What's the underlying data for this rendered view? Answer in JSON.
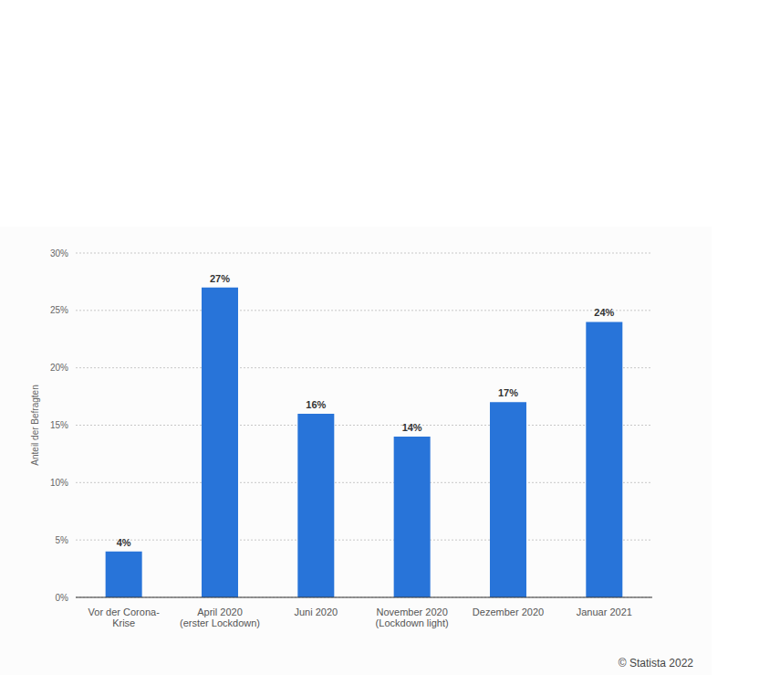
{
  "chart_data": {
    "type": "bar",
    "y_label": "Anteil der Befragten",
    "source": "© Statista 2022",
    "categories": [
      "Vor der Corona-Krise",
      "April 2020 (erster Lockdown)",
      "Juni 2020",
      "November 2020 (Lockdown light)",
      "Dezember 2020",
      "Januar 2021"
    ],
    "values": [
      4,
      27,
      16,
      14,
      17,
      24
    ],
    "value_labels": [
      "4%",
      "27%",
      "16%",
      "14%",
      "17%",
      "24%"
    ],
    "data_labels": true,
    "color": "#2874d9",
    "ylim": [
      0,
      30
    ],
    "yticks": [
      {
        "value": 0,
        "label": "0%"
      },
      {
        "value": 5,
        "label": "5%"
      },
      {
        "value": 10,
        "label": "10%"
      },
      {
        "value": 15,
        "label": "15%"
      },
      {
        "value": 20,
        "label": "20%"
      },
      {
        "value": 25,
        "label": "25%"
      },
      {
        "value": 30,
        "label": "30%"
      }
    ],
    "grid": true
  }
}
